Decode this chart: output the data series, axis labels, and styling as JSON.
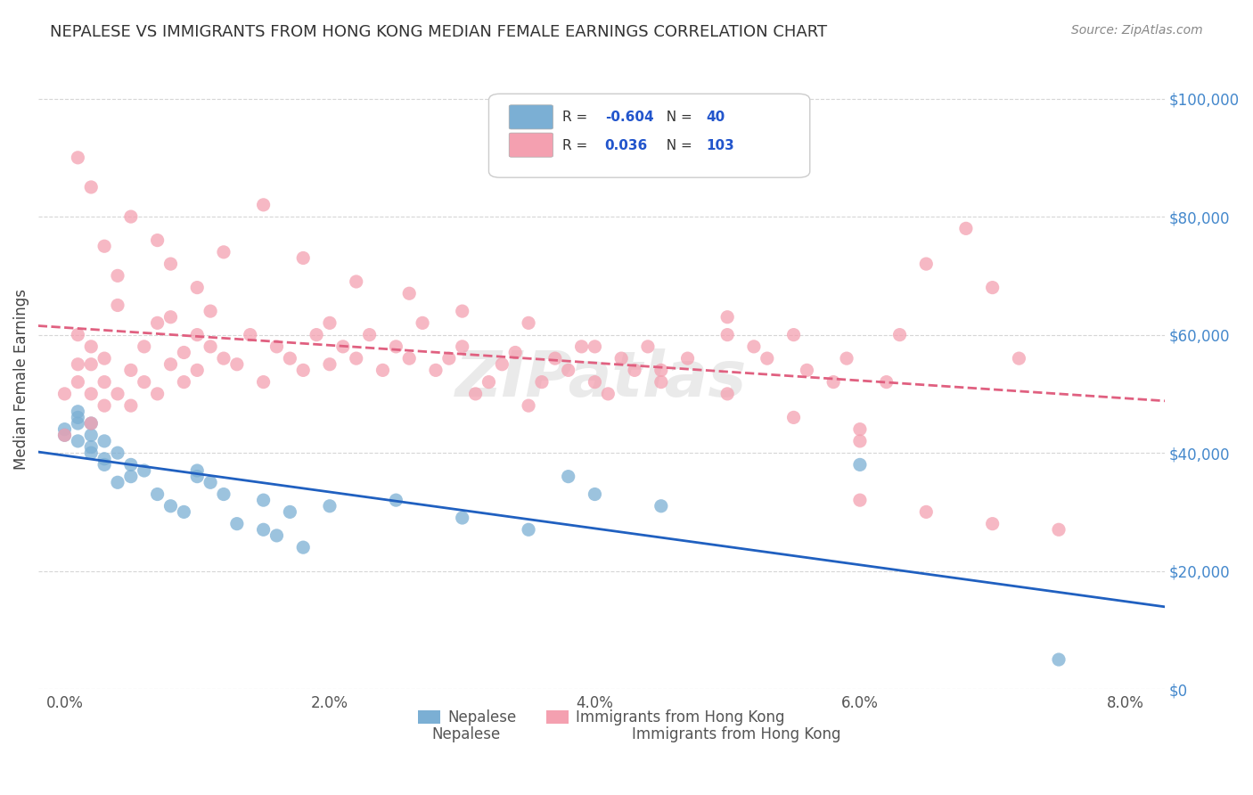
{
  "title": "NEPALESE VS IMMIGRANTS FROM HONG KONG MEDIAN FEMALE EARNINGS CORRELATION CHART",
  "source": "Source: ZipAtlas.com",
  "ylabel": "Median Female Earnings",
  "xlabel_ticks": [
    "0.0%",
    "2.0%",
    "4.0%",
    "6.0%",
    "8.0%"
  ],
  "xlabel_vals": [
    0.0,
    0.02,
    0.04,
    0.06,
    0.08
  ],
  "ytick_labels": [
    "$0",
    "$20,000",
    "$40,000",
    "$60,000",
    "$80,000",
    "$100,000"
  ],
  "ytick_vals": [
    0,
    20000,
    40000,
    60000,
    80000,
    100000
  ],
  "ylim": [
    0,
    105000
  ],
  "xlim": [
    -0.002,
    0.083
  ],
  "blue_R": -0.604,
  "blue_N": 40,
  "pink_R": 0.036,
  "pink_N": 103,
  "blue_color": "#7bafd4",
  "pink_color": "#f4a0b0",
  "blue_line_color": "#2060c0",
  "pink_line_color": "#e06080",
  "legend_blue_label": "R = -0.604  N =  40",
  "legend_pink_label": "R =  0.036  N = 103",
  "nepalese_label": "Nepalese",
  "hk_label": "Immigrants from Hong Kong",
  "watermark": "ZIPatlas",
  "nepalese_x": [
    0.0,
    0.0,
    0.001,
    0.001,
    0.001,
    0.001,
    0.002,
    0.002,
    0.002,
    0.002,
    0.003,
    0.003,
    0.003,
    0.004,
    0.004,
    0.005,
    0.005,
    0.006,
    0.007,
    0.008,
    0.009,
    0.01,
    0.01,
    0.011,
    0.012,
    0.013,
    0.015,
    0.015,
    0.016,
    0.017,
    0.018,
    0.02,
    0.025,
    0.03,
    0.035,
    0.038,
    0.04,
    0.045,
    0.06,
    0.075
  ],
  "nepalese_y": [
    43000,
    44000,
    42000,
    45000,
    46000,
    47000,
    40000,
    41000,
    43000,
    45000,
    38000,
    39000,
    42000,
    35000,
    40000,
    36000,
    38000,
    37000,
    33000,
    31000,
    30000,
    36000,
    37000,
    35000,
    33000,
    28000,
    32000,
    27000,
    26000,
    30000,
    24000,
    31000,
    32000,
    29000,
    27000,
    36000,
    33000,
    31000,
    38000,
    5000
  ],
  "hk_x": [
    0.0,
    0.0,
    0.001,
    0.001,
    0.001,
    0.002,
    0.002,
    0.002,
    0.002,
    0.003,
    0.003,
    0.003,
    0.004,
    0.004,
    0.005,
    0.005,
    0.006,
    0.006,
    0.007,
    0.007,
    0.008,
    0.008,
    0.009,
    0.009,
    0.01,
    0.01,
    0.011,
    0.011,
    0.012,
    0.013,
    0.014,
    0.015,
    0.016,
    0.017,
    0.018,
    0.019,
    0.02,
    0.02,
    0.021,
    0.022,
    0.023,
    0.024,
    0.025,
    0.026,
    0.027,
    0.028,
    0.029,
    0.03,
    0.031,
    0.032,
    0.033,
    0.034,
    0.035,
    0.036,
    0.037,
    0.038,
    0.039,
    0.04,
    0.041,
    0.042,
    0.043,
    0.044,
    0.045,
    0.047,
    0.05,
    0.05,
    0.052,
    0.053,
    0.055,
    0.056,
    0.058,
    0.059,
    0.06,
    0.06,
    0.062,
    0.063,
    0.065,
    0.068,
    0.07,
    0.072,
    0.001,
    0.002,
    0.003,
    0.004,
    0.005,
    0.007,
    0.008,
    0.01,
    0.012,
    0.015,
    0.018,
    0.022,
    0.026,
    0.03,
    0.035,
    0.04,
    0.045,
    0.05,
    0.055,
    0.06,
    0.065,
    0.07,
    0.075
  ],
  "hk_y": [
    43000,
    50000,
    55000,
    52000,
    60000,
    45000,
    50000,
    55000,
    58000,
    48000,
    52000,
    56000,
    50000,
    65000,
    48000,
    54000,
    52000,
    58000,
    50000,
    62000,
    55000,
    63000,
    52000,
    57000,
    54000,
    60000,
    58000,
    64000,
    56000,
    55000,
    60000,
    52000,
    58000,
    56000,
    54000,
    60000,
    55000,
    62000,
    58000,
    56000,
    60000,
    54000,
    58000,
    56000,
    62000,
    54000,
    56000,
    58000,
    50000,
    52000,
    55000,
    57000,
    48000,
    52000,
    56000,
    54000,
    58000,
    52000,
    50000,
    56000,
    54000,
    58000,
    52000,
    56000,
    60000,
    63000,
    58000,
    56000,
    60000,
    54000,
    52000,
    56000,
    42000,
    44000,
    52000,
    60000,
    72000,
    78000,
    68000,
    56000,
    90000,
    85000,
    75000,
    70000,
    80000,
    76000,
    72000,
    68000,
    74000,
    82000,
    73000,
    69000,
    67000,
    64000,
    62000,
    58000,
    54000,
    50000,
    46000,
    32000,
    30000,
    28000,
    27000
  ]
}
